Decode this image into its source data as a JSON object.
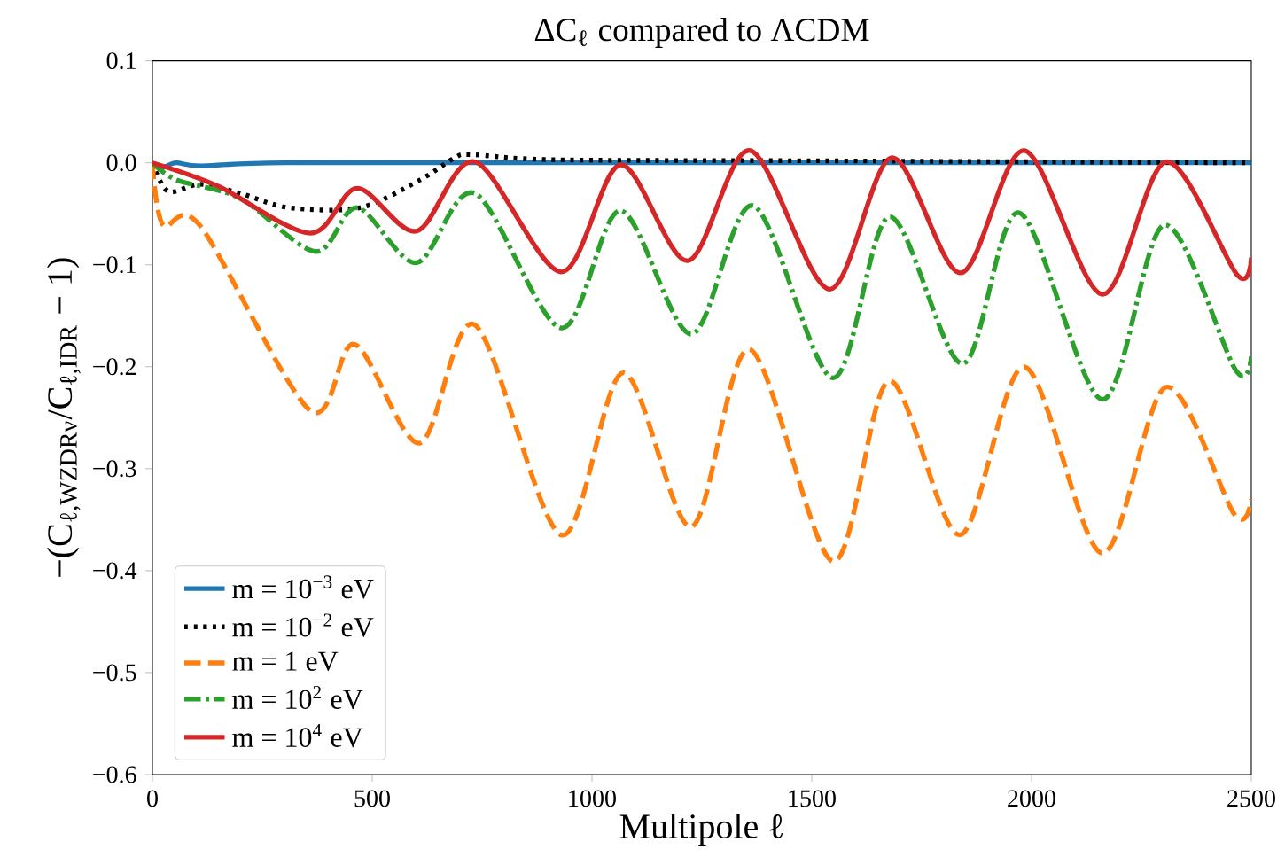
{
  "chart_data": {
    "type": "line",
    "title": "ΔC$_{ℓ}$ compared to ΛCDM",
    "xlabel": "Multipole ℓ",
    "ylabel": "−(C$_{ℓ,WZDRν}$/C$_{ℓ,IDR}$ − 1)",
    "xlim": [
      0,
      2500
    ],
    "ylim": [
      -0.6,
      0.1
    ],
    "xticks": [
      {
        "value": 0,
        "label": "0"
      },
      {
        "value": 500,
        "label": "500"
      },
      {
        "value": 1000,
        "label": "1000"
      },
      {
        "value": 1500,
        "label": "1500"
      },
      {
        "value": 2000,
        "label": "2000"
      },
      {
        "value": 2500,
        "label": "2500"
      }
    ],
    "yticks": [
      {
        "value": -0.6,
        "label": "−0.6"
      },
      {
        "value": -0.5,
        "label": "−0.5"
      },
      {
        "value": -0.4,
        "label": "−0.4"
      },
      {
        "value": -0.3,
        "label": "−0.3"
      },
      {
        "value": -0.2,
        "label": "−0.2"
      },
      {
        "value": -0.1,
        "label": "−0.1"
      },
      {
        "value": 0,
        "label": "0.0"
      },
      {
        "value": 0.1,
        "label": "0.1"
      }
    ],
    "grid": false,
    "legend": "bottom left",
    "marker": "none",
    "series": [
      {
        "name": "m = 10$^{−3}$ eV",
        "color": "#1f77b4",
        "line_style": "solid",
        "x": [
          0,
          20,
          54,
          109,
          300,
          1000,
          1500,
          2000,
          2500
        ],
        "values": [
          0,
          -0.005,
          0,
          -0.003,
          0,
          0,
          0,
          0,
          0
        ]
      },
      {
        "name": "m = 10$^{−2}$ eV",
        "color": "#000000",
        "line_style": "dotted",
        "x": [
          0,
          36,
          109,
          200,
          311,
          472,
          608,
          688,
          728,
          917,
          1500,
          2000,
          2500
        ],
        "values": [
          0,
          -0.028,
          -0.021,
          -0.03,
          -0.044,
          -0.044,
          -0.017,
          0.005,
          0.008,
          0.003,
          0.002,
          0.001,
          0
        ]
      },
      {
        "name": "m = 1 eV",
        "color": "#ff7f0e",
        "line_style": "dashed",
        "x": [
          0,
          24,
          109,
          359,
          460,
          608,
          734,
          930,
          1071,
          1226,
          1359,
          1548,
          1676,
          1837,
          1984,
          2160,
          2306,
          2462,
          2500
        ],
        "values": [
          0,
          -0.061,
          -0.062,
          -0.243,
          -0.178,
          -0.275,
          -0.159,
          -0.365,
          -0.206,
          -0.357,
          -0.183,
          -0.391,
          -0.214,
          -0.365,
          -0.2,
          -0.383,
          -0.22,
          -0.345,
          -0.33
        ]
      },
      {
        "name": "m = 10$^{2}$ eV",
        "color": "#2ca02c",
        "line_style": "dashdot",
        "x": [
          0,
          56,
          200,
          371,
          466,
          601,
          734,
          930,
          1065,
          1226,
          1367,
          1548,
          1677,
          1843,
          1972,
          2161,
          2302,
          2464,
          2500
        ],
        "values": [
          0,
          -0.017,
          -0.035,
          -0.087,
          -0.044,
          -0.098,
          -0.03,
          -0.162,
          -0.047,
          -0.168,
          -0.042,
          -0.211,
          -0.053,
          -0.197,
          -0.049,
          -0.232,
          -0.061,
          -0.203,
          -0.19
        ]
      },
      {
        "name": "m = 10$^{4}$ eV",
        "color": "#d62728",
        "line_style": "solid",
        "x": [
          0,
          150,
          359,
          466,
          601,
          734,
          930,
          1065,
          1218,
          1360,
          1540,
          1682,
          1839,
          1984,
          2161,
          2306,
          2468,
          2500
        ],
        "values": [
          0,
          -0.023,
          -0.069,
          -0.025,
          -0.067,
          0.001,
          -0.107,
          -0.002,
          -0.096,
          0.012,
          -0.124,
          0.005,
          -0.108,
          0.012,
          -0.129,
          0.001,
          -0.11,
          -0.093
        ]
      }
    ]
  }
}
